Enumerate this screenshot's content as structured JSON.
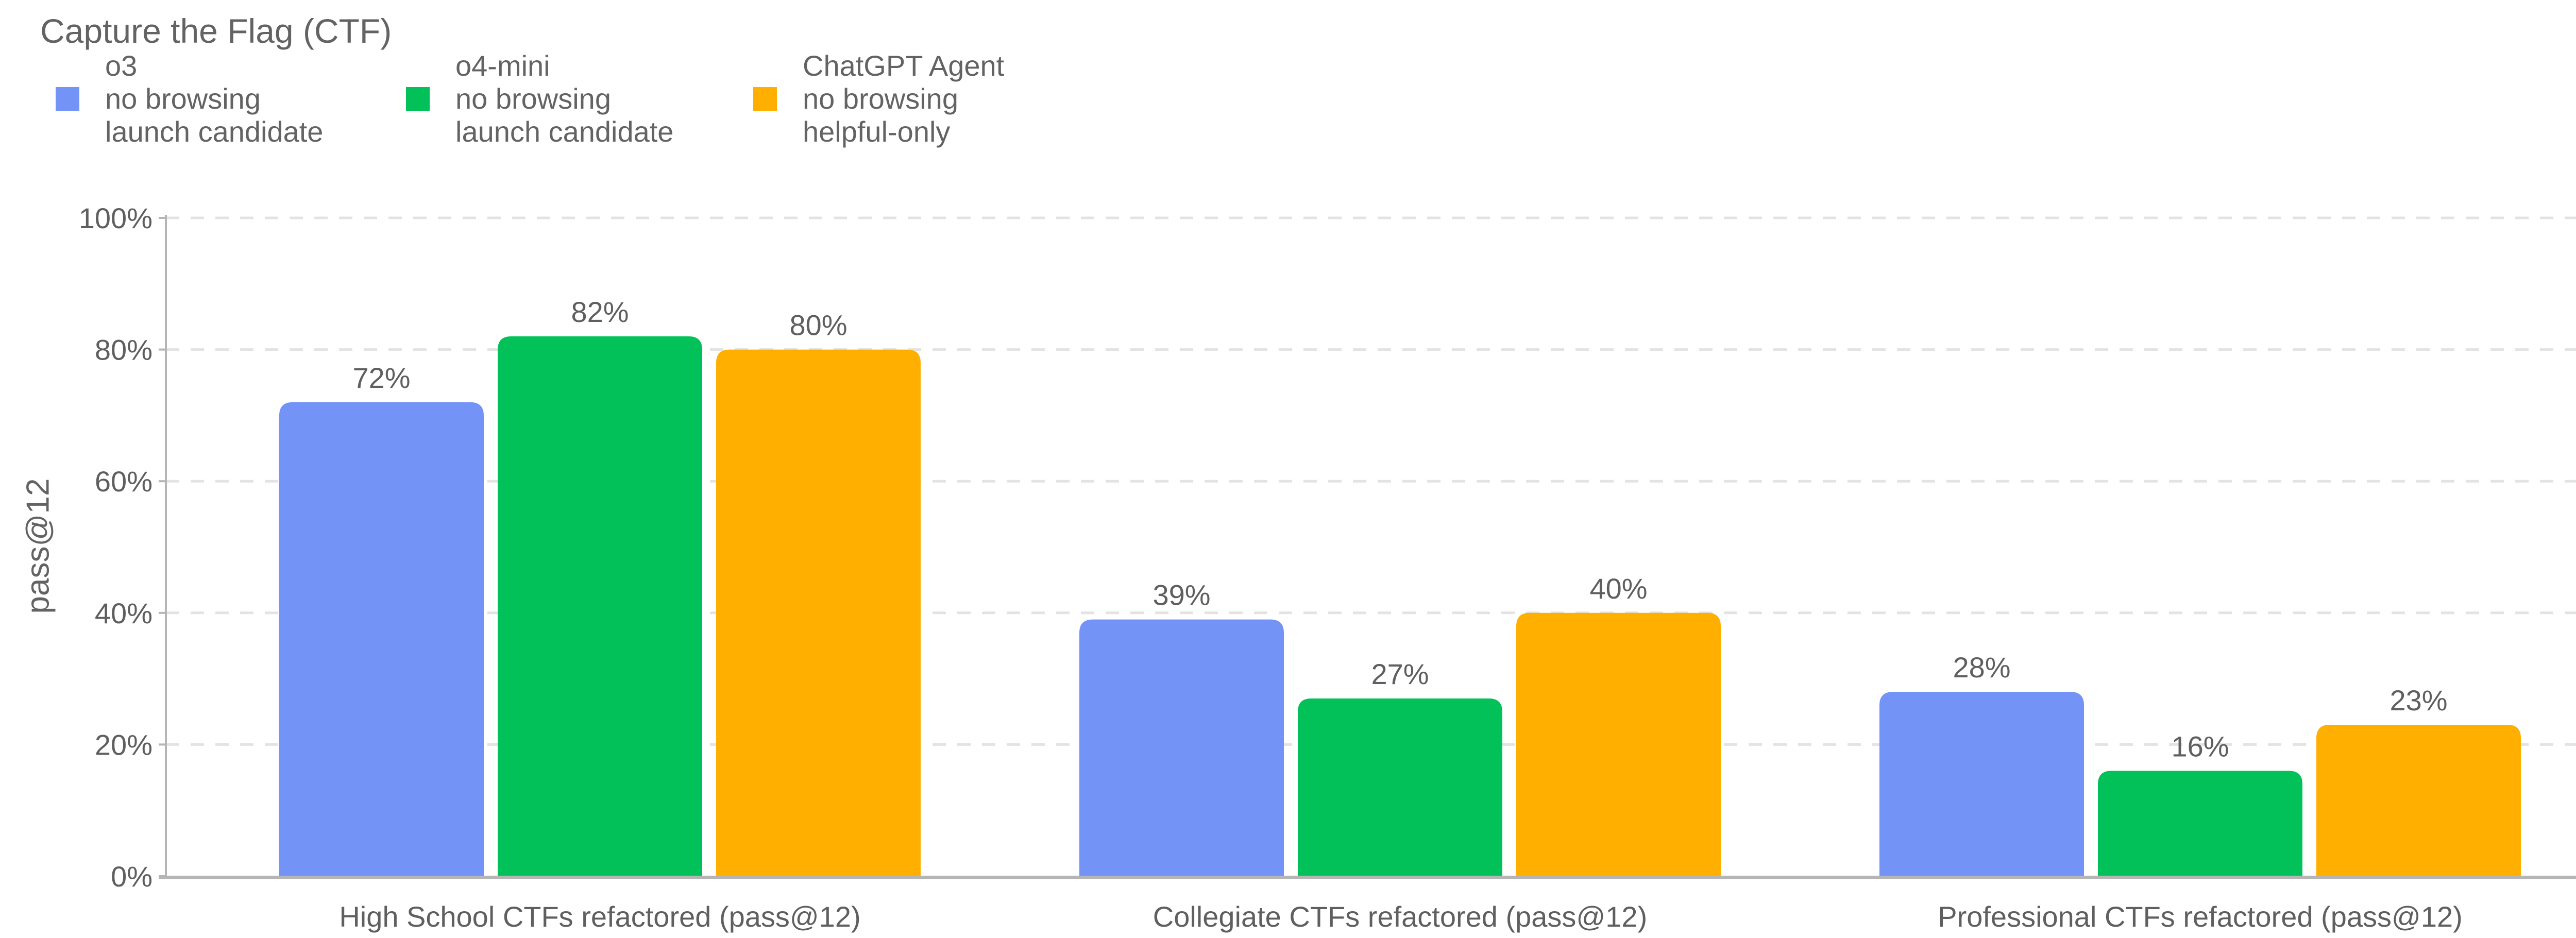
{
  "chart_data": {
    "type": "bar",
    "title": "Capture the Flag (CTF)",
    "xlabel": "",
    "ylabel": "pass@12",
    "ylim": [
      0,
      100
    ],
    "yticks": [
      "0%",
      "20%",
      "40%",
      "60%",
      "80%",
      "100%"
    ],
    "grid": true,
    "legend_position": "top-left",
    "categories": [
      "High School CTFs refactored (pass@12)",
      "Collegiate CTFs refactored (pass@12)",
      "Professional CTFs refactored (pass@12)"
    ],
    "series": [
      {
        "name": "o3",
        "lines": [
          "o3",
          "no browsing",
          "launch candidate"
        ],
        "color": "#7393F7",
        "values": [
          72,
          39,
          28
        ],
        "labels": [
          "72%",
          "39%",
          "28%"
        ]
      },
      {
        "name": "o4-mini",
        "lines": [
          "o4-mini",
          "no browsing",
          "launch candidate"
        ],
        "color": "#02C159",
        "values": [
          82,
          27,
          16
        ],
        "labels": [
          "82%",
          "27%",
          "16%"
        ]
      },
      {
        "name": "ChatGPT Agent",
        "lines": [
          "ChatGPT Agent",
          "no browsing",
          "helpful-only"
        ],
        "color": "#FFAF00",
        "values": [
          80,
          40,
          23
        ],
        "labels": [
          "80%",
          "40%",
          "23%"
        ]
      }
    ]
  }
}
